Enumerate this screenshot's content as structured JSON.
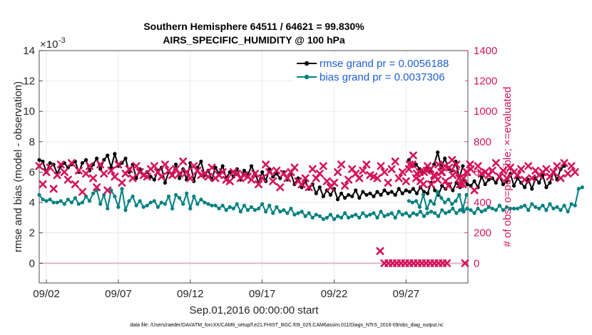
{
  "chart_data": {
    "type": "line",
    "title_line1": "Southern Hemisphere 64511 / 64621 = 99.830%",
    "title_line2": "AIRS_SPECIFIC_HUMIDITY @ 100 hPa",
    "ylabel_left": "rmse and bias (model - observation)",
    "ylabel_right": "# of obs: o=possible; ×=evaluated",
    "xlabel": "Sep.01,2016 00:00:00 start",
    "exponent_label": "×10",
    "exponent_power": "-3",
    "footer": "data file: /Users/raeder/DAI/ATM_forcXX/CAM6_setup/f.e21.FHIST_BGC.f09_025.CAM6assim.011/Diags_NTrS_2016-09/obs_diag_output.nc",
    "x_range_days": [
      1.5,
      31.3
    ],
    "ylim_left": [
      -0.0013,
      0.014
    ],
    "ylim_right": [
      -130,
      1400
    ],
    "left_ticks": [
      0,
      2,
      4,
      6,
      8,
      10,
      12,
      14
    ],
    "right_ticks": [
      0,
      200,
      400,
      600,
      800,
      1000,
      1200,
      1400
    ],
    "x_ticks": [
      {
        "day": 2,
        "label": "09/02"
      },
      {
        "day": 7,
        "label": "09/07"
      },
      {
        "day": 12,
        "label": "09/12"
      },
      {
        "day": 17,
        "label": "09/17"
      },
      {
        "day": 22,
        "label": "09/22"
      },
      {
        "day": 27,
        "label": "09/27"
      }
    ],
    "legend": [
      {
        "label": "rmse grand pr = 0.0056188",
        "color": "#000000"
      },
      {
        "label": "bias grand pr = 0.0037306",
        "color": "#008080"
      }
    ],
    "colors": {
      "rmse": "#000000",
      "bias": "#008080",
      "obs": "#d4145a",
      "zero_line": "#d9b3c3"
    },
    "series": [
      {
        "name": "rmse",
        "segments": [
          {
            "start_day": 1.5,
            "step": 0.25,
            "values": [
              6.8,
              6.7,
              6.0,
              6.6,
              6.5,
              5.9,
              6.4,
              6.6,
              6.3,
              6.5,
              6.7,
              6.0,
              6.6,
              6.8,
              6.1,
              6.5,
              6.9,
              6.2,
              6.8,
              7.1,
              6.3,
              7.2,
              6.4,
              6.6,
              6.9,
              6.0,
              6.5,
              5.6,
              6.2,
              5.8,
              6.0,
              5.7,
              5.5,
              6.1,
              6.3,
              5.3,
              6.0,
              5.8,
              6.5,
              5.6,
              6.2,
              5.5,
              6.6,
              5.4,
              6.3,
              6.7,
              5.8,
              6.1,
              5.5,
              6.3,
              5.9,
              6.4,
              5.6,
              6.0,
              5.7,
              6.2,
              5.5,
              6.1,
              5.8,
              6.4,
              5.9,
              5.3,
              6.0,
              5.4,
              6.2,
              5.7,
              5.9,
              5.6,
              6.0,
              5.5,
              5.9,
              5.2,
              5.6,
              5.0,
              5.4,
              4.9,
              5.2,
              4.6,
              5.0,
              4.4,
              4.8,
              4.5,
              4.9,
              4.2,
              4.6,
              4.3,
              4.5,
              4.4,
              4.8,
              4.3,
              4.7,
              4.5,
              4.6,
              4.4,
              4.7,
              4.5,
              4.8,
              4.6,
              4.7,
              4.5,
              4.9,
              4.6,
              4.8,
              4.7,
              4.9,
              4.6,
              5.0,
              4.7,
              4.6,
              5.3,
              4.8,
              4.5,
              5.1,
              4.9,
              5.2,
              4.8,
              5.3,
              5.0,
              5.5,
              5.2,
              5.1,
              5.4,
              5.0,
              5.7,
              5.2,
              5.5,
              5.6,
              5.3,
              5.7,
              5.2,
              5.4,
              5.9,
              5.1,
              5.6,
              5.3,
              5.0,
              5.5,
              4.9,
              5.6,
              5.3,
              5.8,
              5.0,
              5.3,
              6.0,
              5.5,
              6.2,
              6.4
            ]
          },
          {
            "start_day": 27.2,
            "step": 0.25,
            "values": [
              6.8,
              6.4,
              6.5,
              6.2,
              6.0,
              6.3,
              6.1,
              6.5,
              7.3,
              6.3,
              6.9,
              6.2,
              6.1,
              6.7,
              5.6,
              6.4
            ]
          }
        ]
      },
      {
        "name": "bias",
        "segments": [
          {
            "start_day": 1.5,
            "step": 0.25,
            "values": [
              4.5,
              4.2,
              4.1,
              4.2,
              4.0,
              4.0,
              4.1,
              3.9,
              4.2,
              4.0,
              4.3,
              3.9,
              4.0,
              4.4,
              4.1,
              4.6,
              4.8,
              3.9,
              4.5,
              3.6,
              4.8,
              4.4,
              3.7,
              4.9,
              3.5,
              4.1,
              4.4,
              3.8,
              4.1,
              3.7,
              3.8,
              4.0,
              4.1,
              3.7,
              4.0,
              3.9,
              4.4,
              3.6,
              4.5,
              4.3,
              3.9,
              4.6,
              3.6,
              4.4,
              3.9,
              4.2,
              4.0,
              3.9,
              3.8,
              3.8,
              3.6,
              3.8,
              3.5,
              3.7,
              3.6,
              3.9,
              3.4,
              3.8,
              3.5,
              3.7,
              3.5,
              3.6,
              3.9,
              3.4,
              3.8,
              3.3,
              3.7,
              3.4,
              3.5,
              3.3,
              3.6,
              3.2,
              3.3,
              3.4,
              3.1,
              3.3,
              3.0,
              3.2,
              3.1,
              2.9,
              3.0,
              3.2,
              2.9,
              3.1,
              3.0,
              3.3,
              3.0,
              3.1,
              3.2,
              3.0,
              3.3,
              3.1,
              3.2,
              3.3,
              3.0,
              3.4,
              3.1,
              3.2,
              3.3,
              3.0,
              3.4,
              3.2,
              3.3,
              3.1,
              3.3,
              3.2,
              3.4,
              3.1,
              3.3,
              3.4,
              3.3,
              3.1,
              3.5,
              3.3,
              3.4,
              3.6,
              3.3,
              3.5,
              3.4,
              3.6,
              3.5,
              3.3,
              3.6,
              3.4,
              3.5,
              3.7,
              3.6,
              3.5,
              3.8,
              3.5,
              3.7,
              3.6,
              3.6,
              3.6,
              3.7,
              3.8,
              3.5,
              3.9,
              3.7,
              3.6,
              3.8,
              3.5,
              3.9,
              3.6,
              3.7,
              3.5,
              3.8,
              3.4,
              3.9,
              3.8,
              4.9,
              5.0
            ]
          },
          {
            "start_day": 27.2,
            "step": 0.25,
            "values": [
              4.1,
              4.0,
              4.1,
              3.7,
              4.5,
              3.6,
              4.1,
              3.9,
              4.7,
              4.3,
              4.0,
              4.2,
              3.9,
              4.1,
              4.5,
              3.6,
              4.5
            ]
          }
        ]
      },
      {
        "name": "obs_possible",
        "segments": [
          {
            "start_day": 1.5,
            "step": 0.25,
            "values": [
              640,
              520,
              600,
              630,
              490,
              580,
              650,
              600,
              550,
              660,
              520,
              610,
              470,
              590,
              640,
              560,
              500,
              650,
              590,
              480,
              610,
              570,
              650,
              530,
              590,
              620,
              560,
              640,
              600,
              580,
              570,
              620,
              640,
              600,
              570,
              650,
              610,
              580,
              620,
              590,
              670,
              600,
              560,
              640,
              610,
              580,
              590,
              570,
              630,
              560,
              580,
              600,
              550,
              540,
              600,
              590,
              560,
              580,
              570,
              550,
              590,
              520,
              560,
              650,
              600,
              540,
              610,
              500,
              590,
              560,
              600,
              630,
              540,
              520,
              560,
              500,
              620,
              560,
              590,
              640,
              540,
              500,
              530,
              600,
              650,
              510,
              550,
              620,
              590,
              560,
              610,
              650,
              580,
              570,
              560,
              640,
              600,
              530,
              620,
              670,
              560,
              600,
              540,
              650,
              710,
              590,
              540,
              600,
              640,
              520,
              570,
              650,
              600,
              540,
              630,
              580,
              650,
              520,
              560,
              600,
              620,
              480,
              640,
              590,
              600,
              580,
              610,
              660,
              570,
              610,
              560,
              630,
              600,
              580,
              620,
              550,
              640,
              560,
              610,
              580,
              600,
              620,
              570,
              600,
              640,
              560,
              660,
              590,
              640,
              600
            ]
          },
          {
            "start_day": 27.2,
            "step": 0.25,
            "values": [
              620,
              650,
              560,
              600,
              520,
              610,
              620,
              580,
              550,
              600,
              640,
              510,
              680,
              600,
              560,
              520,
              600,
              650
            ]
          }
        ]
      },
      {
        "name": "obs_evaluated_low",
        "segments": [
          {
            "start_day": 25.2,
            "step": 0.29,
            "values": [
              80,
              0,
              0,
              0,
              0,
              0,
              0,
              0,
              0,
              0,
              0,
              0,
              0,
              0,
              0,
              0,
              0
            ]
          },
          {
            "start_day": 31.1,
            "step": 0.25,
            "values": [
              0
            ]
          }
        ]
      }
    ]
  }
}
